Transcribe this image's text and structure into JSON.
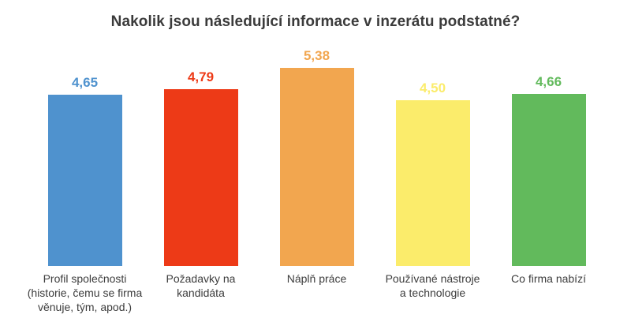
{
  "page": {
    "background": "#ffffff"
  },
  "chart_data": {
    "type": "bar",
    "title": "Nakolik jsou následující informace v inzerátu podstatné?",
    "categories": [
      "Profil společnosti (historie, čemu se firma věnuje, tým, apod.)",
      "Požadavky na kandidáta",
      "Náplň práce",
      "Používané nástroje a technologie",
      "Co firma nabízí"
    ],
    "category_lines": [
      [
        "Profil společnosti",
        "(historie, čemu se firma",
        "věnuje, tým, apod.)"
      ],
      [
        "Požadavky na",
        "kandidáta"
      ],
      [
        "Náplň práce"
      ],
      [
        "Používané nástroje",
        "a technologie"
      ],
      [
        "Co firma nabízí"
      ]
    ],
    "values": [
      4.65,
      4.79,
      5.38,
      4.5,
      4.66
    ],
    "value_labels": [
      "4,65",
      "4,79",
      "5,38",
      "4,50",
      "4,66"
    ],
    "colors": [
      "#4F92CE",
      "#ED3A17",
      "#F2A64F",
      "#FBEC6B",
      "#62BA5C"
    ],
    "title_color": "#3b3b3b",
    "category_label_color": "#3d3d3d",
    "ylim": [
      0,
      5.8
    ],
    "grid": false,
    "axes_visible": false,
    "legend_position": "none",
    "xlabel": "",
    "ylabel": ""
  }
}
